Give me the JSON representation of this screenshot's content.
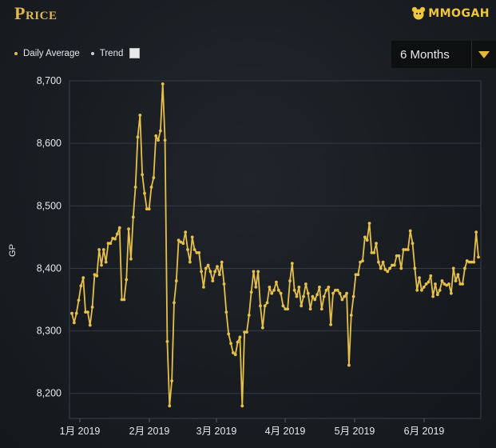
{
  "header": {
    "title": "Price",
    "logo_text": "MMOGAH"
  },
  "legend": {
    "items": [
      {
        "label": "Daily Average",
        "color": "#e5c04a"
      },
      {
        "label": "Trend",
        "color": "#c8d0d8"
      }
    ]
  },
  "range_selector": {
    "selected": "6 Months"
  },
  "chart_data": {
    "type": "line",
    "title": "",
    "ylabel": "GP",
    "xlabel": "",
    "ylim": [
      8160,
      8700
    ],
    "yticks": [
      8200,
      8300,
      8400,
      8500,
      8600,
      8700
    ],
    "ytick_labels": [
      "8,200",
      "8,300",
      "8,400",
      "8,500",
      "8,600",
      "8,700"
    ],
    "xtick_labels": [
      "1月 2019",
      "2月 2019",
      "3月 2019",
      "4月 2019",
      "5月 2019",
      "6月 2019"
    ],
    "line_color": "#e5c04a",
    "series": [
      {
        "values": [
          8328,
          8313,
          8328,
          8349,
          8372,
          8385,
          8330,
          8330,
          8309,
          8338,
          8390,
          8388,
          8430,
          8405,
          8430,
          8410,
          8440,
          8440,
          8448,
          8447,
          8455,
          8465,
          8350,
          8350,
          8382,
          8463,
          8415,
          8482,
          8530,
          8610,
          8645,
          8550,
          8520,
          8495,
          8495,
          8530,
          8545,
          8612,
          8605,
          8620,
          8695,
          8605,
          8283,
          8180,
          8220,
          8345,
          8380,
          8445,
          8442,
          8440,
          8458,
          8430,
          8410,
          8450,
          8430,
          8425,
          8425,
          8395,
          8370,
          8400,
          8405,
          8395,
          8380,
          8395,
          8403,
          8390,
          8410,
          8375,
          8330,
          8295,
          8280,
          8265,
          8262,
          8282,
          8290,
          8180,
          8298,
          8298,
          8325,
          8362,
          8395,
          8370,
          8395,
          8340,
          8305,
          8340,
          8345,
          8370,
          8360,
          8365,
          8378,
          8365,
          8360,
          8340,
          8335,
          8335,
          8380,
          8408,
          8365,
          8355,
          8370,
          8340,
          8355,
          8375,
          8360,
          8335,
          8355,
          8350,
          8358,
          8370,
          8335,
          8355,
          8365,
          8370,
          8310,
          8360,
          8365,
          8365,
          8360,
          8350,
          8355,
          8360,
          8245,
          8325,
          8355,
          8390,
          8390,
          8410,
          8412,
          8450,
          8445,
          8472,
          8425,
          8425,
          8440,
          8410,
          8400,
          8410,
          8398,
          8395,
          8400,
          8405,
          8405,
          8420,
          8420,
          8400,
          8430,
          8430,
          8430,
          8460,
          8440,
          8400,
          8365,
          8385,
          8365,
          8370,
          8375,
          8378,
          8388,
          8355,
          8375,
          8358,
          8365,
          8380,
          8375,
          8373,
          8375,
          8360,
          8400,
          8380,
          8390,
          8375,
          8375,
          8400,
          8412,
          8410,
          8410,
          8410,
          8458,
          8418
        ]
      }
    ]
  }
}
